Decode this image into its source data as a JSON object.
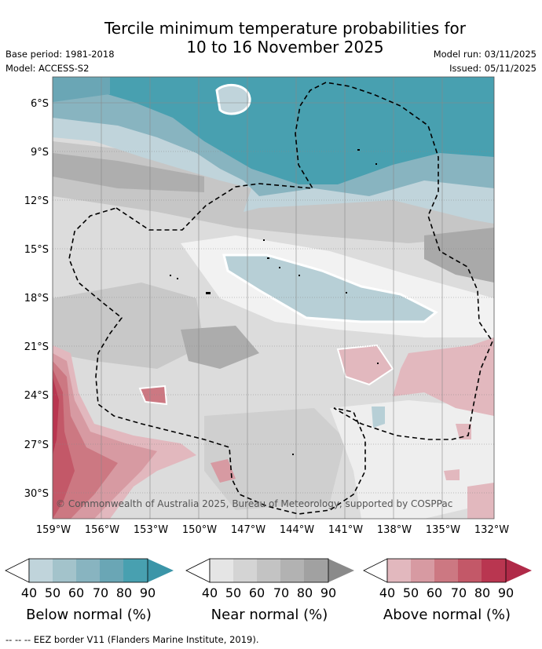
{
  "header": {
    "title_line1": "Tercile minimum temperature probabilities for",
    "title_line2": "10 to 16 November 2025",
    "base_period": "Base period: 1981-2018",
    "model": "Model: ACCESS-S2",
    "model_run": "Model run: 03/11/2025",
    "issued": "Issued: 05/11/2025"
  },
  "map": {
    "lat_labels": [
      "6°S",
      "9°S",
      "12°S",
      "15°S",
      "18°S",
      "21°S",
      "24°S",
      "27°S",
      "30°S"
    ],
    "lon_labels": [
      "159°W",
      "156°W",
      "153°W",
      "150°W",
      "147°W",
      "144°W",
      "141°W",
      "138°W",
      "135°W",
      "132°W"
    ],
    "copyright": "© Commonwealth of Australia 2025, Bureau of Meteorology, supported by COSPPac"
  },
  "legend": {
    "ticks": [
      "40",
      "50",
      "60",
      "70",
      "80",
      "90"
    ],
    "below": {
      "label": "Below normal (%)",
      "colors": [
        "#c0d4db",
        "#a3c3cb",
        "#88b4c0",
        "#6aa6b5",
        "#48a0b0"
      ]
    },
    "near": {
      "label": "Near normal (%)",
      "colors": [
        "#e5e5e5",
        "#d4d4d4",
        "#c3c3c3",
        "#b2b2b2",
        "#a1a1a1"
      ]
    },
    "above": {
      "label": "Above normal (%)",
      "colors": [
        "#e2b8be",
        "#d79aa2",
        "#cc7882",
        "#c35868",
        "#b93650"
      ]
    }
  },
  "footer": "-- -- -- EEZ border V11 (Flanders Marine Institute, 2019)."
}
